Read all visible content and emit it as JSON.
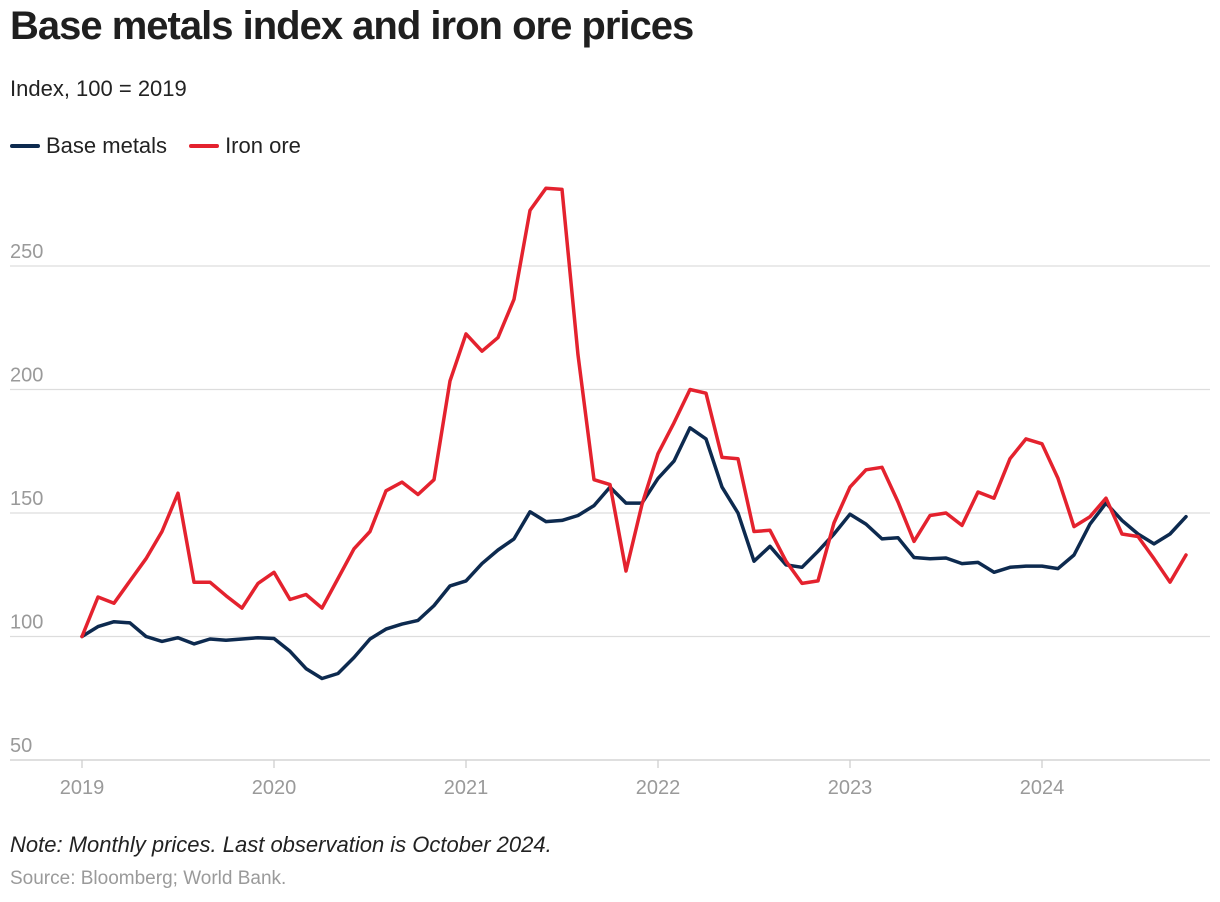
{
  "header": {
    "title": "Base metals index and iron ore prices",
    "subtitle": "Index, 100 = 2019"
  },
  "footer": {
    "note": "Note: Monthly prices. Last observation is October 2024.",
    "source": "Source: Bloomberg; World Bank."
  },
  "colors": {
    "base_metals": "#0d2a4f",
    "iron_ore": "#e4222e",
    "grid": "#dddddd",
    "tick_label": "#9a9a9a"
  },
  "chart_data": {
    "type": "line",
    "title": "Base metals index and iron ore prices",
    "subtitle": "Index, 100 = 2019",
    "xlabel": "",
    "ylabel": "",
    "x_start": "2019-01",
    "x_end": "2024-10",
    "frequency": "monthly",
    "xticks": [
      "2019",
      "2020",
      "2021",
      "2022",
      "2023",
      "2024"
    ],
    "yticks": [
      50,
      100,
      150,
      200,
      250
    ],
    "ylim": [
      50,
      285
    ],
    "grid": "horizontal",
    "legend": "top-left",
    "series": [
      {
        "name": "Base metals",
        "color": "#0d2a4f",
        "values": [
          100,
          104,
          106,
          105.5,
          100,
          98,
          99.5,
          97,
          99,
          98.5,
          99,
          99.5,
          99.2,
          94,
          87,
          83,
          85,
          91.5,
          99,
          103,
          105,
          106.5,
          112.5,
          120.5,
          122.5,
          129.5,
          135,
          139.5,
          150.5,
          146.5,
          147,
          149,
          153,
          160.5,
          154,
          154,
          164,
          171,
          184.5,
          180,
          160.5,
          150,
          130.5,
          136.5,
          129,
          128,
          134.5,
          141.5,
          149.5,
          145.5,
          139.5,
          140,
          132,
          131.5,
          131.8,
          129.5,
          130,
          126,
          128,
          128.5,
          128.5,
          127.5,
          133,
          145.5,
          154,
          147,
          141.5,
          137.5,
          141.5,
          148.5
        ]
      },
      {
        "name": "Iron ore",
        "color": "#e4222e",
        "values": [
          100,
          116,
          113.5,
          122.5,
          131.5,
          142.5,
          158,
          122,
          122,
          116.5,
          111.5,
          121.5,
          126,
          115,
          117,
          111.5,
          123.5,
          135.5,
          142.5,
          159,
          162.5,
          157.5,
          163.5,
          203.5,
          222.5,
          215.5,
          221,
          236.5,
          272.5,
          281.5,
          281,
          214,
          163.5,
          161.5,
          126.5,
          153.5,
          174,
          186.5,
          200,
          198.5,
          172.5,
          172,
          142.5,
          143,
          130.5,
          121.5,
          122.5,
          146,
          160.5,
          167.5,
          168.5,
          154.5,
          138.5,
          149,
          150,
          145,
          158.5,
          156,
          172,
          180,
          178,
          164,
          144.5,
          148.5,
          156,
          141.5,
          140.5,
          131.5,
          122,
          133
        ]
      }
    ]
  }
}
